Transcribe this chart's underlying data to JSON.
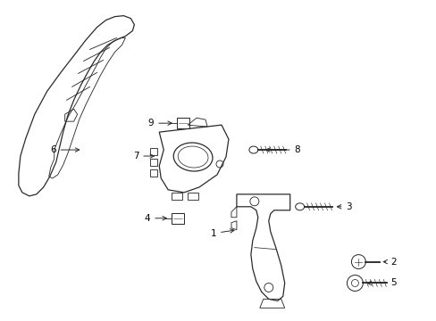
{
  "background_color": "#ffffff",
  "line_color": "#2a2a2a",
  "label_color": "#000000",
  "figsize": [
    4.89,
    3.6
  ],
  "dpi": 100
}
